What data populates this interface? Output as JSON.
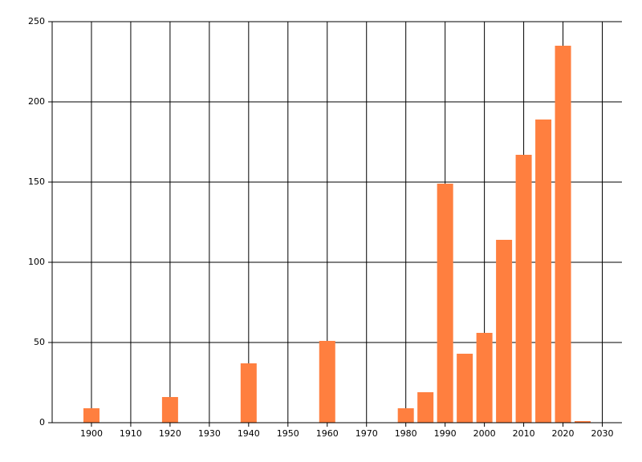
{
  "chart_data": {
    "type": "bar",
    "x": [
      1900,
      1920,
      1940,
      1960,
      1980,
      1985,
      1990,
      1995,
      2000,
      2005,
      2010,
      2015,
      2020,
      2025
    ],
    "values": [
      9,
      16,
      37,
      51,
      9,
      19,
      149,
      43,
      56,
      114,
      167,
      189,
      235,
      1
    ],
    "color": "#ff7f3f",
    "xlim": [
      1890,
      2035
    ],
    "xticks": [
      1900,
      1910,
      1920,
      1930,
      1940,
      1950,
      1960,
      1970,
      1980,
      1990,
      2000,
      2010,
      2020,
      2030
    ],
    "ylim": [
      0,
      250
    ],
    "yticks": [
      0,
      50,
      100,
      150,
      200,
      250
    ],
    "grid": true
  }
}
